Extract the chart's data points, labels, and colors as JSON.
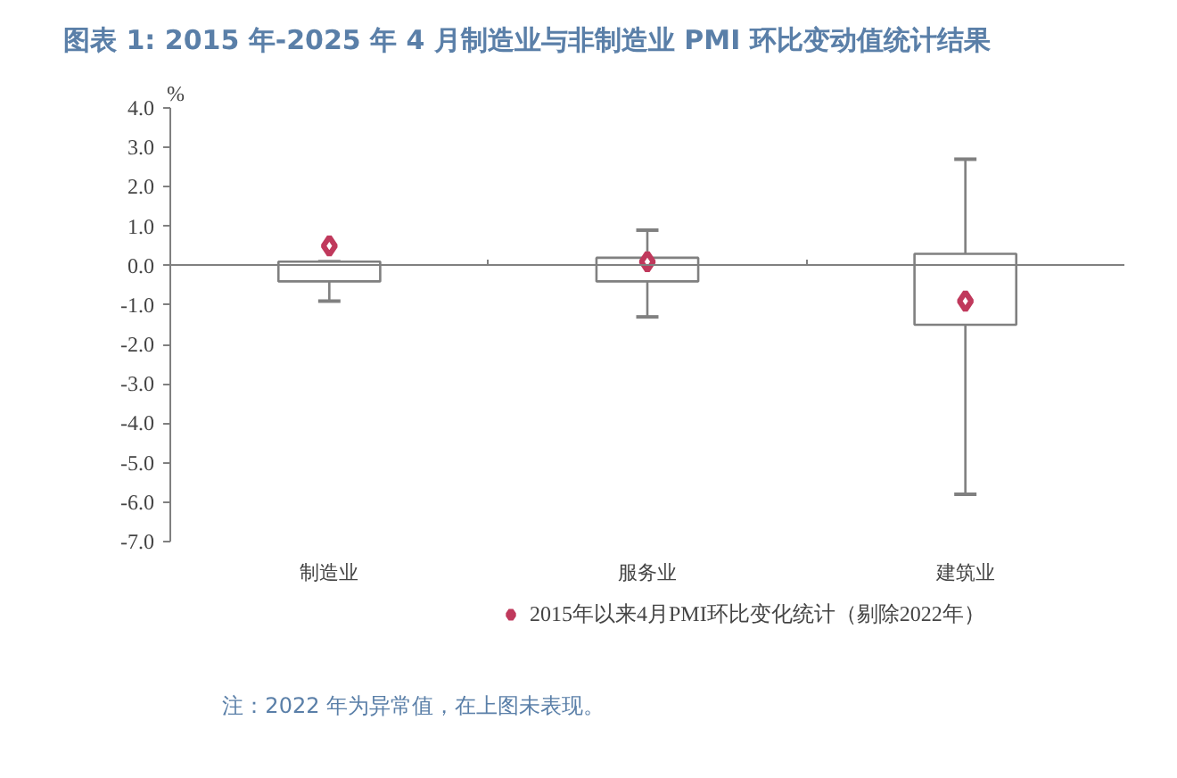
{
  "chart_data": {
    "type": "bar",
    "title": "图表 1:    2015 年-2025 年 4 月制造业与非制造业 PMI 环比变动值统计结果",
    "ylabel": "%",
    "categories": [
      "制造业",
      "服务业",
      "建筑业"
    ],
    "base": [
      -0.4,
      -0.4,
      -1.5
    ],
    "values": [
      0.5,
      0.6,
      1.8
    ],
    "color": "#ffffff",
    "errors": [
      [
        -0.9,
        0.1
      ],
      [
        -1.3,
        0.9
      ],
      [
        -5.8,
        2.7
      ]
    ],
    "series": [
      {
        "name": "2015年以来4月PMI环比变化统计（剔除2022年）",
        "type": "scatter",
        "marker": "diamond",
        "color": "#c0395c",
        "x": [
          "制造业",
          "服务业",
          "建筑业"
        ],
        "values": [
          0.5,
          0.1,
          -0.9
        ]
      }
    ],
    "ylim": [
      -7.0,
      4.0
    ],
    "yticks": [
      {
        "value": 4,
        "label": "4.0"
      },
      {
        "value": 3,
        "label": "3.0"
      },
      {
        "value": 2,
        "label": "2.0"
      },
      {
        "value": 1,
        "label": "1.0"
      },
      {
        "value": 0,
        "label": "0.0"
      },
      {
        "value": -1,
        "label": "-1.0"
      },
      {
        "value": -2,
        "label": "-2.0"
      },
      {
        "value": -3,
        "label": "-3.0"
      },
      {
        "value": -4,
        "label": "-4.0"
      },
      {
        "value": -5,
        "label": "-5.0"
      },
      {
        "value": -6,
        "label": "-6.0"
      },
      {
        "value": -7,
        "label": "-7.0"
      }
    ],
    "legend": "bottom",
    "annotations": [
      "注：2022 年为异常值，在上图未表现。"
    ]
  }
}
